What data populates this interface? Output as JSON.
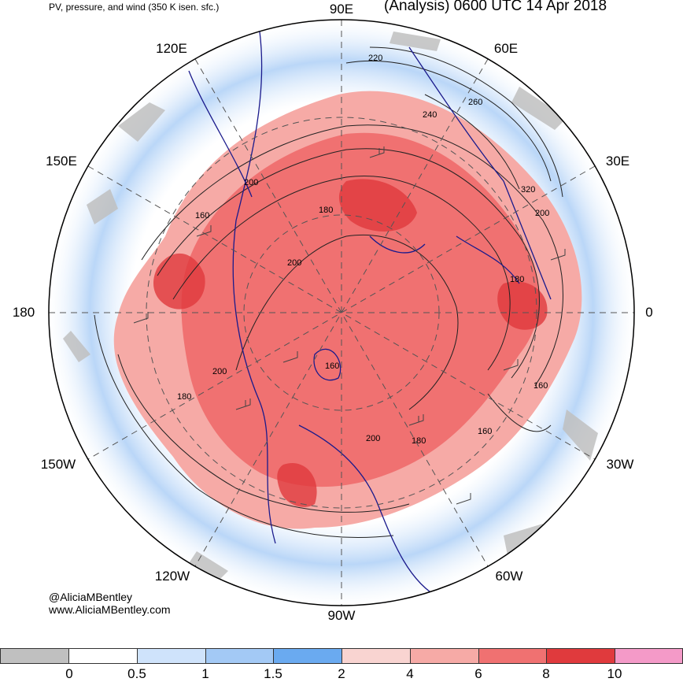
{
  "header": {
    "left_title": "PV, pressure, and wind (350 K isen. sfc.)",
    "right_title": "(Analysis) 0600 UTC 14 Apr 2018"
  },
  "longitude_labels": {
    "e90": "90E",
    "e60": "60E",
    "e30": "30E",
    "zero": "0",
    "w30": "30W",
    "w60": "60W",
    "w90": "90W",
    "w120": "120W",
    "w150": "150W",
    "dateline": "180",
    "e150": "150E",
    "e120": "120E"
  },
  "contour_labels": [
    "220",
    "260",
    "240",
    "320",
    "200",
    "180",
    "200",
    "200",
    "160",
    "180",
    "160",
    "160",
    "200",
    "180",
    "180",
    "200",
    "160"
  ],
  "credits": {
    "twitter": "@AliciaMBentley",
    "website": "www.AliciaMBentley.com"
  },
  "colorbar": {
    "ticks": [
      "0",
      "0.5",
      "1",
      "1.5",
      "2",
      "4",
      "6",
      "8",
      "10"
    ],
    "colors": [
      "#c0c0c0",
      "#ffffff",
      "#cfe3fb",
      "#a3c9f5",
      "#6aaaf0",
      "#f9d4d1",
      "#f6aaa6",
      "#f07171",
      "#e03a3d",
      "#f49ac8"
    ]
  },
  "palette": {
    "coastline": "#1a1a8c",
    "contour": "#222222",
    "grid": "#555555"
  }
}
